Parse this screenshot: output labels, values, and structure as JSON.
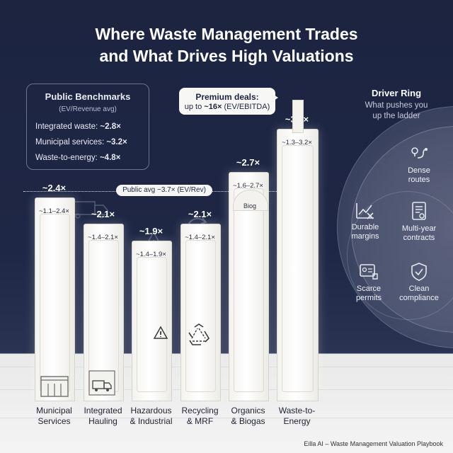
{
  "title_line1": "Where Waste Management Trades",
  "title_line2": "and What Drives High Valuations",
  "benchmarks": {
    "heading": "Public Benchmarks",
    "subheading": "(EV/Revenue avg)",
    "rows": [
      {
        "label": "Integrated waste: ",
        "value": "~2.8×"
      },
      {
        "label": "Municipal services: ",
        "value": "~3.2×"
      },
      {
        "label": "Waste-to-energy: ",
        "value": "~4.8×"
      }
    ]
  },
  "callout": {
    "line1": "Premium deals:",
    "prefix": "up to ",
    "value": "~16×",
    "suffix": " (EV/EBITDA)"
  },
  "public_avg_label": "Public avg ~3.7× (EV/Rev)",
  "driver_ring": {
    "heading": "Driver Ring",
    "subheading_line1": "What pushes you",
    "subheading_line2": "up the ladder",
    "items": [
      {
        "line1": "Dense",
        "line2": "routes",
        "icon": "route-pin-icon"
      },
      {
        "line1": "Durable",
        "line2": "margins",
        "icon": "chart-tools-icon"
      },
      {
        "line1": "Multi-year",
        "line2": "contracts",
        "icon": "contract-icon"
      },
      {
        "line1": "Scarce",
        "line2": "permits",
        "icon": "permit-stamp-icon"
      },
      {
        "line1": "Clean",
        "line2": "compliance",
        "icon": "shield-check-icon"
      }
    ]
  },
  "chart_data": {
    "type": "bar",
    "categories": [
      "Municipal Services",
      "Integrated Hauling",
      "Hazardous & Industrial",
      "Recycling & MRF",
      "Organics & Biogas",
      "Waste-to-Energy"
    ],
    "category_lines": [
      [
        "Municipal",
        "Services"
      ],
      [
        "Integrated",
        "Hauling"
      ],
      [
        "Hazardous",
        "& Industrial"
      ],
      [
        "Recycling",
        "& MRF"
      ],
      [
        "Organics",
        "& Biogas"
      ],
      [
        "Waste-to-",
        "Energy"
      ]
    ],
    "values": [
      2.4,
      2.1,
      1.9,
      2.1,
      2.7,
      3.2
    ],
    "peak_labels": [
      "~2.4×",
      "~2.1×",
      "~1.9×",
      "~2.1×",
      "~2.7×",
      "~3.2×"
    ],
    "range_labels": [
      "~1.1–2.4×",
      "~1.4–2.1×",
      "~1.4–1.9×",
      "~1.4–2.1×",
      "~1.6–2.7×",
      "~1.3–3.2×"
    ],
    "ranges": [
      [
        1.1,
        2.4
      ],
      [
        1.4,
        2.1
      ],
      [
        1.4,
        1.9
      ],
      [
        1.4,
        2.1
      ],
      [
        1.6,
        2.7
      ],
      [
        1.3,
        3.2
      ]
    ],
    "reference_line": 3.7,
    "title": "",
    "xlabel": "",
    "ylabel": ""
  },
  "organics_dome_label": "Biog",
  "footer": "Eilla AI – Waste Management Valuation Playbook",
  "colors": {
    "background": "#1c2440",
    "bar": "#f3f2ee",
    "text_light": "#ffffff",
    "text_dark": "#1c2440"
  }
}
